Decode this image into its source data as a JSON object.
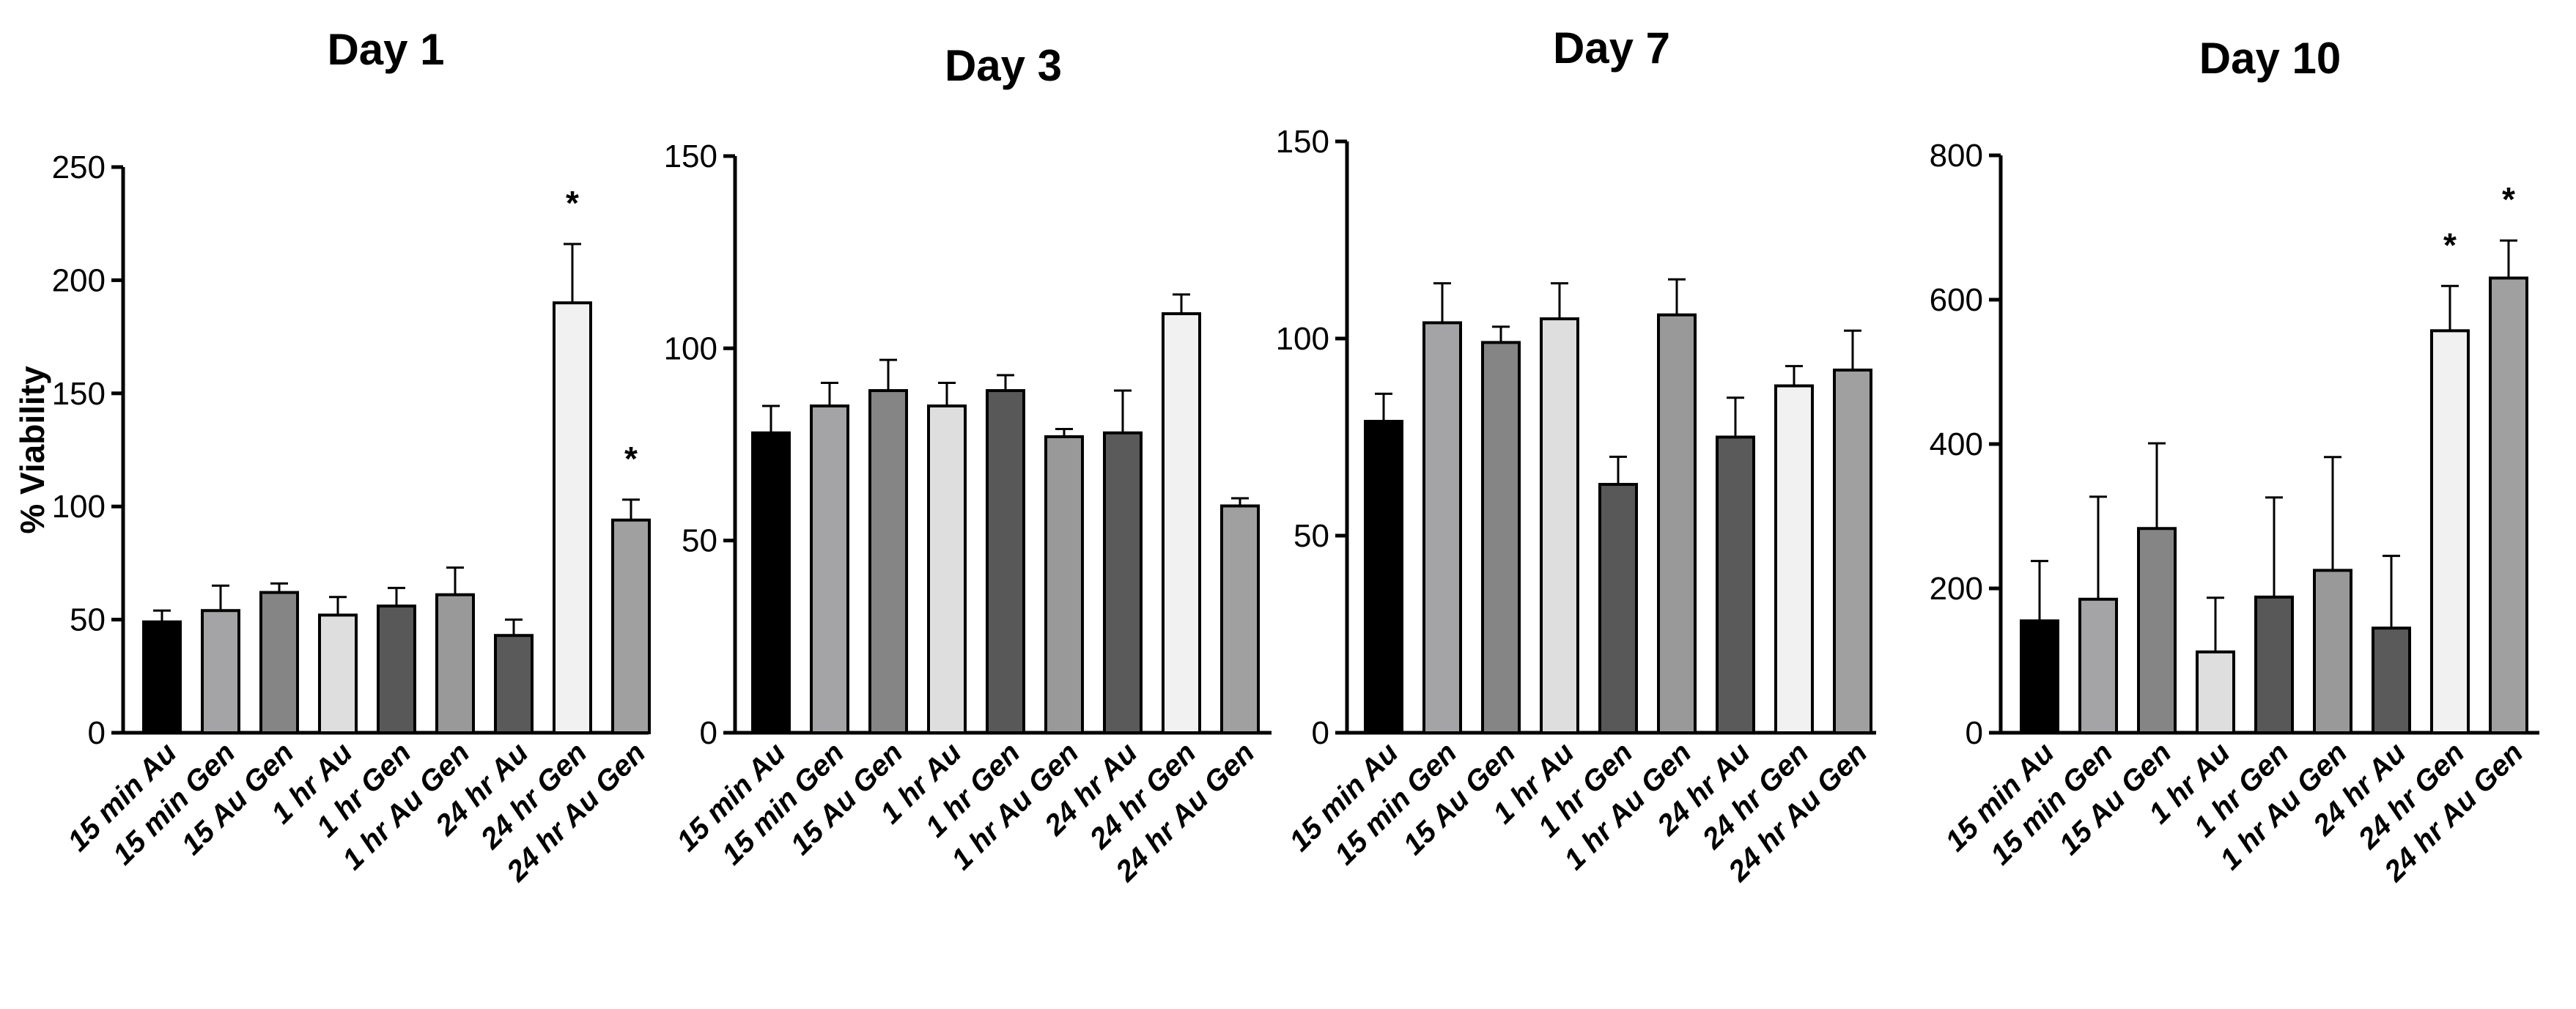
{
  "colors": {
    "15 min Au": "#000000",
    "15 min Gen": "#a4a4a6",
    "15 Au Gen": "#858585",
    "1 hr Au": "#dedede",
    "1 hr Gen": "#585858",
    "1 hr Au Gen": "#999999",
    "24 hr Au": "#5a5a5a",
    "24 hr Gen": "#f1f1f1",
    "24 hr Au Gen": "#a0a0a0"
  },
  "chart_data": [
    {
      "type": "bar",
      "title": "Day 1",
      "ylabel": "% Viability",
      "xlabel": "",
      "ylim": [
        0,
        250
      ],
      "yticks": [
        0,
        50,
        100,
        150,
        200,
        250
      ],
      "categories": [
        "15 min Au",
        "15 min Gen",
        "15 Au Gen",
        "1 hr Au",
        "1 hr Gen",
        "1 hr Au Gen",
        "24 hr Au",
        "24 hr Gen",
        "24 hr Au Gen"
      ],
      "values": [
        49,
        54,
        62,
        52,
        56,
        61,
        43,
        190,
        94
      ],
      "errors": [
        5,
        11,
        4,
        8,
        8,
        12,
        7,
        26,
        9
      ],
      "significance": [
        "",
        "",
        "",
        "",
        "",
        "",
        "",
        "*",
        "*"
      ]
    },
    {
      "type": "bar",
      "title": "Day 3",
      "ylabel": "",
      "xlabel": "",
      "ylim": [
        0,
        150
      ],
      "yticks": [
        0,
        50,
        100,
        150
      ],
      "categories": [
        "15 min Au",
        "15 min Gen",
        "15 Au Gen",
        "1 hr Au",
        "1 hr Gen",
        "1 hr Au Gen",
        "24 hr Au",
        "24 hr Gen",
        "24 hr Au Gen"
      ],
      "values": [
        78,
        85,
        89,
        85,
        89,
        77,
        78,
        109,
        59
      ],
      "errors": [
        7,
        6,
        8,
        6,
        4,
        2,
        11,
        5,
        2
      ],
      "significance": [
        "",
        "",
        "",
        "",
        "",
        "",
        "",
        "",
        ""
      ]
    },
    {
      "type": "bar",
      "title": "Day 7",
      "ylabel": "",
      "xlabel": "",
      "ylim": [
        0,
        150
      ],
      "yticks": [
        0,
        50,
        100,
        150
      ],
      "categories": [
        "15 min Au",
        "15 min Gen",
        "15 Au Gen",
        "1 hr Au",
        "1 hr Gen",
        "1 hr Au Gen",
        "24 hr Au",
        "24 hr Gen",
        "24 hr Au Gen"
      ],
      "values": [
        79,
        104,
        99,
        105,
        63,
        106,
        75,
        88,
        92
      ],
      "errors": [
        7,
        10,
        4,
        9,
        7,
        9,
        10,
        5,
        10
      ],
      "significance": [
        "",
        "",
        "",
        "",
        "",
        "",
        "",
        "",
        ""
      ]
    },
    {
      "type": "bar",
      "title": "Day 10",
      "ylabel": "",
      "xlabel": "",
      "ylim": [
        0,
        800
      ],
      "yticks": [
        0,
        200,
        400,
        600,
        800
      ],
      "categories": [
        "15 min Au",
        "15 min Gen",
        "15 Au Gen",
        "1 hr Au",
        "1 hr Gen",
        "1 hr Au Gen",
        "24 hr Au",
        "24 hr Gen",
        "24 hr Au Gen"
      ],
      "values": [
        155,
        185,
        283,
        112,
        188,
        225,
        145,
        557,
        630
      ],
      "errors": [
        83,
        142,
        118,
        75,
        138,
        157,
        100,
        62,
        52
      ],
      "significance": [
        "",
        "",
        "",
        "",
        "",
        "",
        "",
        "*",
        "*"
      ]
    }
  ]
}
